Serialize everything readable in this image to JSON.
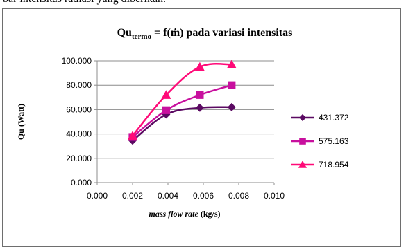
{
  "caption_fragment": "bar intensitas radiasi yang diberikan.",
  "chart_data": {
    "type": "line",
    "title": {
      "main": "Qu",
      "sub": "termo",
      "rest": " = f(ṁ) pada variasi intensitas"
    },
    "xlabel": {
      "italic": "mass flow rate",
      "unit": " (kg/s)"
    },
    "ylabel": "Qu (Watt)",
    "xlim": [
      0,
      0.01
    ],
    "ylim": [
      0,
      100
    ],
    "x_ticks": [
      "0.000",
      "0.002",
      "0.004",
      "0.006",
      "0.008",
      "0.010"
    ],
    "y_ticks": [
      "0.000",
      "20.000",
      "40.000",
      "60.000",
      "80.000",
      "100.000"
    ],
    "grid": "horizontal",
    "legend_position": "right",
    "series": [
      {
        "name": "431.372",
        "color": "#5b0a62",
        "marker": "diamond",
        "x": [
          0.002,
          0.0039,
          0.0058,
          0.0076
        ],
        "values": [
          34.5,
          56,
          61.5,
          62
        ]
      },
      {
        "name": "575.163",
        "color": "#c8109e",
        "marker": "square",
        "x": [
          0.002,
          0.0039,
          0.0058,
          0.0076
        ],
        "values": [
          37.5,
          59.5,
          72,
          80
        ]
      },
      {
        "name": "718.954",
        "color": "#ff0a78",
        "marker": "triangle",
        "x": [
          0.002,
          0.0039,
          0.0058,
          0.0076
        ],
        "values": [
          38.5,
          72,
          95,
          97
        ]
      }
    ]
  }
}
